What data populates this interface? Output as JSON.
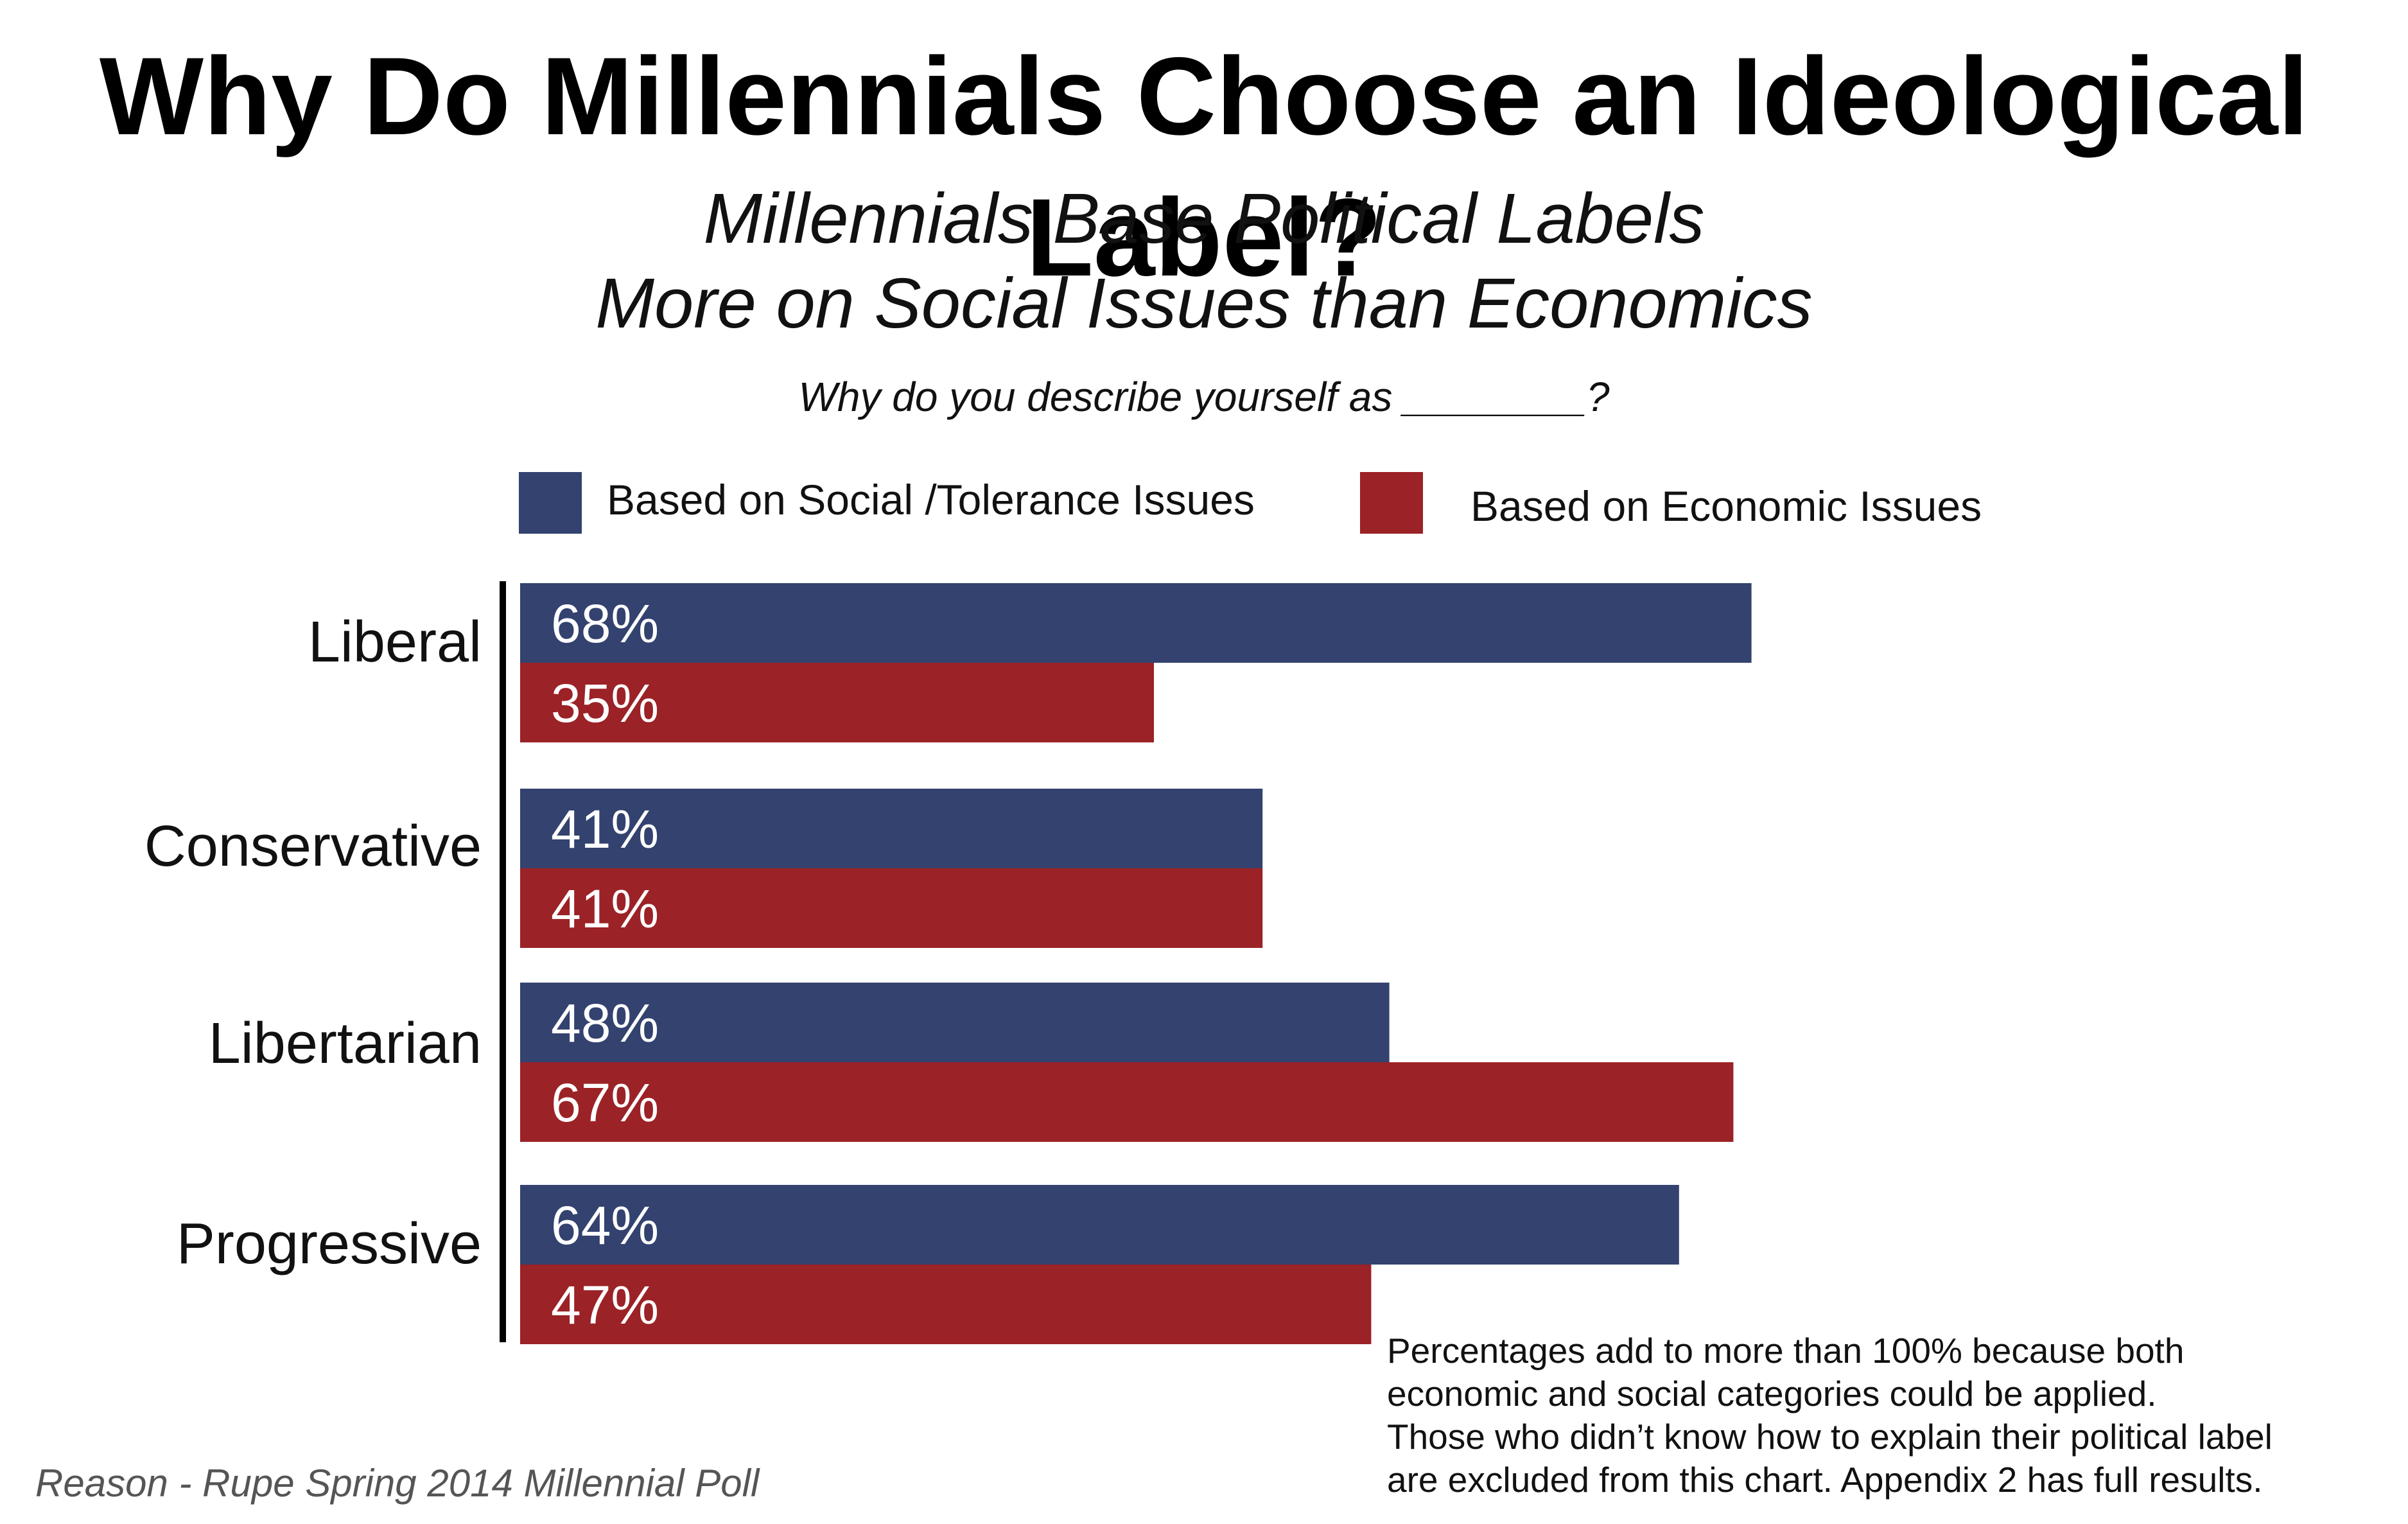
{
  "title": "Why Do Millennials Choose an Ideological Label?",
  "subtitle": [
    "Millennials Base Political Labels",
    "More on Social Issues than Economics"
  ],
  "question": "Why do you describe yourself as ________?",
  "footnote": [
    "Percentages add to more than 100% because both",
    "economic and social categories could be applied.",
    "Those who didn’t know how to explain their political label",
    "are excluded from this chart. Appendix 2 has full results."
  ],
  "source": "Reason - Rupe Spring 2014 Millennial Poll",
  "chart_data": {
    "type": "bar",
    "orientation": "horizontal",
    "categories": [
      "Liberal",
      "Conservative",
      "Libertarian",
      "Progressive"
    ],
    "series": [
      {
        "name": "Based on Social /Tolerance Issues",
        "color": "#33426f",
        "values": [
          68,
          41,
          48,
          64
        ]
      },
      {
        "name": "Based on Economic Issues",
        "color": "#9b2226",
        "values": [
          35,
          41,
          67,
          47
        ]
      }
    ],
    "value_suffix": "%",
    "legend_position": "top",
    "grid": false
  }
}
